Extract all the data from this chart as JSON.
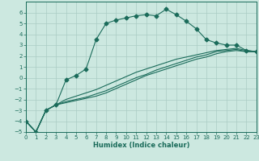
{
  "title": "",
  "xlabel": "Humidex (Indice chaleur)",
  "bg_color": "#cce8e0",
  "line_color": "#1a6b5a",
  "grid_color": "#aaccc4",
  "xlim": [
    0,
    23
  ],
  "ylim": [
    -5,
    7
  ],
  "xticks": [
    0,
    1,
    2,
    3,
    4,
    5,
    6,
    7,
    8,
    9,
    10,
    11,
    12,
    13,
    14,
    15,
    16,
    17,
    18,
    19,
    20,
    21,
    22,
    23
  ],
  "yticks": [
    -5,
    -4,
    -3,
    -2,
    -1,
    0,
    1,
    2,
    3,
    4,
    5,
    6
  ],
  "series": [
    {
      "x": [
        0,
        1,
        2,
        3,
        4,
        5,
        6,
        7,
        8,
        9,
        10,
        11,
        12,
        13,
        14,
        15,
        16,
        17,
        18,
        19,
        20,
        21,
        22,
        23
      ],
      "y": [
        -4,
        -5,
        -3,
        -2.5,
        -0.2,
        0.2,
        0.8,
        3.5,
        5.0,
        5.3,
        5.5,
        5.7,
        5.8,
        5.7,
        6.3,
        5.8,
        5.2,
        4.5,
        3.5,
        3.2,
        3.0,
        3.0,
        2.5,
        2.4
      ],
      "marker": "D",
      "markersize": 2.5
    },
    {
      "x": [
        0,
        1,
        2,
        3,
        4,
        5,
        6,
        7,
        8,
        9,
        10,
        11,
        12,
        13,
        14,
        15,
        16,
        17,
        18,
        19,
        20,
        21,
        22,
        23
      ],
      "y": [
        -4,
        -5,
        -3,
        -2.5,
        -2.2,
        -2.0,
        -1.8,
        -1.5,
        -1.2,
        -0.8,
        -0.4,
        0.0,
        0.3,
        0.7,
        1.0,
        1.3,
        1.6,
        1.9,
        2.1,
        2.4,
        2.5,
        2.6,
        2.4,
        2.4
      ],
      "marker": null
    },
    {
      "x": [
        0,
        1,
        2,
        3,
        4,
        5,
        6,
        7,
        8,
        9,
        10,
        11,
        12,
        13,
        14,
        15,
        16,
        17,
        18,
        19,
        20,
        21,
        22,
        23
      ],
      "y": [
        -4,
        -5,
        -3,
        -2.5,
        -2.0,
        -1.7,
        -1.4,
        -1.1,
        -0.7,
        -0.3,
        0.1,
        0.5,
        0.8,
        1.1,
        1.4,
        1.7,
        1.9,
        2.1,
        2.3,
        2.5,
        2.6,
        2.7,
        2.5,
        2.4
      ],
      "marker": null
    },
    {
      "x": [
        0,
        1,
        2,
        3,
        4,
        5,
        6,
        7,
        8,
        9,
        10,
        11,
        12,
        13,
        14,
        15,
        16,
        17,
        18,
        19,
        20,
        21,
        22,
        23
      ],
      "y": [
        -4,
        -5,
        -3,
        -2.5,
        -2.3,
        -2.1,
        -1.9,
        -1.7,
        -1.4,
        -1.0,
        -0.6,
        -0.2,
        0.2,
        0.5,
        0.8,
        1.1,
        1.4,
        1.7,
        1.9,
        2.2,
        2.4,
        2.5,
        2.4,
        2.4
      ],
      "marker": null
    }
  ],
  "xlabel_fontsize": 6.0,
  "tick_fontsize": 5.0
}
